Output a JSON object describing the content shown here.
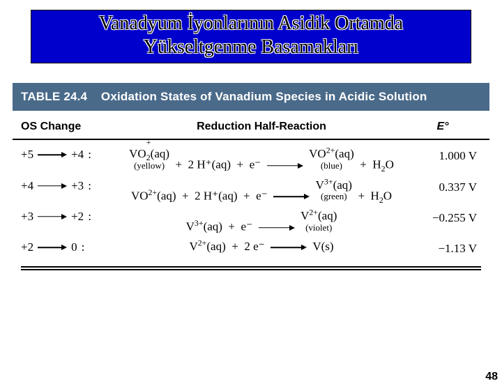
{
  "title": {
    "line1": "Vanadyum İyonlarının Asidik Ortamda",
    "line2": "Yükseltgenme Basamakları"
  },
  "table": {
    "caption_label": "TABLE 24.4",
    "caption_text": "Oxidation States of Vanadium Species in Acidic Solution",
    "header_bg": "#4a6a8a",
    "header_fg": "#ffffff",
    "columns": {
      "os": "OS Change",
      "rxn": "Reduction Half-Reaction",
      "e": "E°"
    },
    "rows": [
      {
        "os_from": "+5",
        "os_to": "+4",
        "reactant1": {
          "core": "VO",
          "sub": "2",
          "sup": "+",
          "note": "(yellow)"
        },
        "plus_h": "2 H⁺(aq)",
        "plus_e": "e⁻",
        "product1": {
          "core": "VO",
          "sup": "2+",
          "note": "(blue)"
        },
        "plus_prod": "H₂O",
        "e_value": "1.000 V"
      },
      {
        "os_from": "+4",
        "os_to": "+3",
        "reactant1": {
          "core": "VO",
          "sup": "2+"
        },
        "plus_h": "2 H⁺(aq)",
        "plus_e": "e⁻",
        "product1": {
          "core": "V",
          "sup": "3+",
          "note": "(green)"
        },
        "plus_prod": "H₂O",
        "e_value": "0.337 V"
      },
      {
        "os_from": "+3",
        "os_to": "+2",
        "reactant1": {
          "core": "V",
          "sup": "3+"
        },
        "plus_e": "e⁻",
        "product1": {
          "core": "V",
          "sup": "2+",
          "note": "(violet)"
        },
        "e_value": "−0.255 V"
      },
      {
        "os_from": "+2",
        "os_to": "0",
        "reactant1": {
          "core": "V",
          "sup": "2+"
        },
        "plus_e": "2 e⁻",
        "product1": {
          "core": "V(s)"
        },
        "e_value": "−1.13 V"
      }
    ]
  },
  "page_number": "48"
}
